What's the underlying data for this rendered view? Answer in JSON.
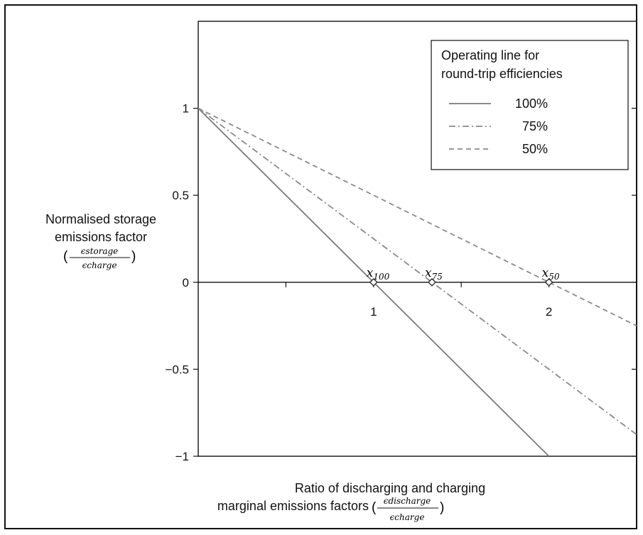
{
  "chart_data": {
    "type": "line",
    "x_ticks": [
      {
        "value": 1,
        "label": "1"
      },
      {
        "value": 2,
        "label": "2"
      }
    ],
    "y_ticks": [
      {
        "value": 1,
        "label": "1"
      },
      {
        "value": 0.5,
        "label": "0.5"
      },
      {
        "value": 0,
        "label": "0"
      },
      {
        "value": -0.5,
        "label": "−0.5"
      },
      {
        "value": -1,
        "label": "−1"
      }
    ],
    "xlim": [
      0,
      2.5
    ],
    "ylim": [
      -1,
      1.5
    ],
    "ylabel_lines": [
      "Normalised storage",
      "emissions factor"
    ],
    "ylabel_fraction": {
      "num": "ϵstorage",
      "den": "ϵcharge"
    },
    "xlabel_lines": [
      "Ratio of discharging and charging",
      "marginal emissions factors"
    ],
    "xlabel_fraction": {
      "num": "ϵdischarge",
      "den": "ϵcharge"
    },
    "legend": {
      "title_lines": [
        "Operating line for",
        "round-trip efficiencies"
      ],
      "position": "top-right"
    },
    "series": [
      {
        "name": "100%",
        "style": "solid",
        "color": "#7a7a7a",
        "x": [
          0,
          2
        ],
        "y": [
          1,
          -1
        ],
        "marker": {
          "x": 1,
          "y": 0,
          "label": "x",
          "sub": "100"
        }
      },
      {
        "name": "75%",
        "style": "dashdot",
        "color": "#8a8a8a",
        "x": [
          0,
          2.5
        ],
        "y": [
          1,
          -0.875
        ],
        "marker": {
          "x": 1.333,
          "y": 0,
          "label": "x",
          "sub": "75"
        }
      },
      {
        "name": "50%",
        "style": "dashed",
        "color": "#8a8a8a",
        "x": [
          0,
          2.5
        ],
        "y": [
          1,
          -0.25
        ],
        "marker": {
          "x": 2,
          "y": 0,
          "label": "x",
          "sub": "50"
        }
      }
    ]
  }
}
